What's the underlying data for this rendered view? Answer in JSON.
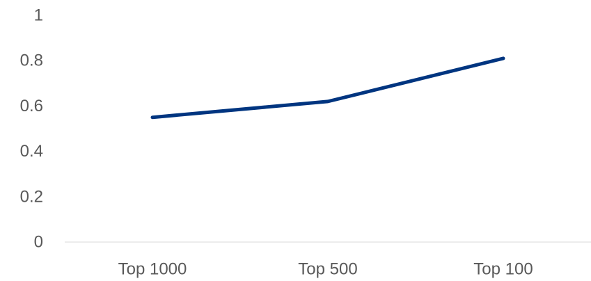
{
  "chart_data": {
    "type": "line",
    "categories": [
      "Top 1000",
      "Top 500",
      "Top 100"
    ],
    "series": [
      {
        "values": [
          0.55,
          0.62,
          0.81
        ]
      }
    ],
    "ylim": [
      0,
      1
    ],
    "yticks": [
      0,
      0.2,
      0.4,
      0.6,
      0.8,
      1
    ],
    "ytick_labels": [
      "0",
      "0.2",
      "0.4",
      "0.6",
      "0.8",
      "1"
    ],
    "title": "",
    "xlabel": "",
    "ylabel": "",
    "grid": false,
    "legend": "none",
    "colors": {
      "line": "#003580",
      "axis": "#d9d9d9",
      "text": "#595959"
    }
  }
}
